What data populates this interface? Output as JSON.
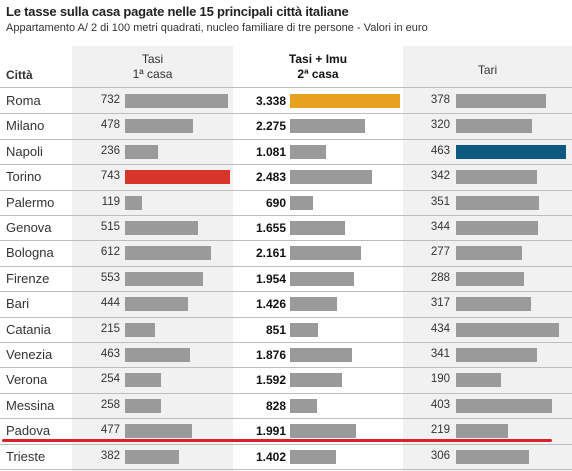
{
  "title": "Le tasse sulla casa pagate nelle 15 principali città italiane",
  "subtitle": "Appartamento A/ 2 di 100 metri quadrati, nucleo familiare di tre persone - Valori in euro",
  "header": {
    "city": "Città",
    "col1_line1": "Tasi",
    "col1_line2": "1ª casa",
    "col2_line1": "Tasi + Imu",
    "col2_line2": "2ª casa",
    "col3_line1": "Tari"
  },
  "colors": {
    "bar_default": "#9a9a9a",
    "max_tasi": "#d7342a",
    "max_tasi_imu": "#e8a020",
    "max_tari": "#0d5a80",
    "underline": "#d7242a"
  },
  "rows": [
    {
      "city": "Roma",
      "tasi": "732",
      "tasi_imu": "3.338",
      "tari": "378"
    },
    {
      "city": "Milano",
      "tasi": "478",
      "tasi_imu": "2.275",
      "tari": "320"
    },
    {
      "city": "Napoli",
      "tasi": "236",
      "tasi_imu": "1.081",
      "tari": "463"
    },
    {
      "city": "Torino",
      "tasi": "743",
      "tasi_imu": "2.483",
      "tari": "342"
    },
    {
      "city": "Palermo",
      "tasi": "119",
      "tasi_imu": "690",
      "tari": "351"
    },
    {
      "city": "Genova",
      "tasi": "515",
      "tasi_imu": "1.655",
      "tari": "344"
    },
    {
      "city": "Bologna",
      "tasi": "612",
      "tasi_imu": "2.161",
      "tari": "277"
    },
    {
      "city": "Firenze",
      "tasi": "553",
      "tasi_imu": "1.954",
      "tari": "288"
    },
    {
      "city": "Bari",
      "tasi": "444",
      "tasi_imu": "1.426",
      "tari": "317"
    },
    {
      "city": "Catania",
      "tasi": "215",
      "tasi_imu": "851",
      "tari": "434"
    },
    {
      "city": "Venezia",
      "tasi": "463",
      "tasi_imu": "1.876",
      "tari": "341"
    },
    {
      "city": "Verona",
      "tasi": "254",
      "tasi_imu": "1.592",
      "tari": "190"
    },
    {
      "city": "Messina",
      "tasi": "258",
      "tasi_imu": "828",
      "tari": "403"
    },
    {
      "city": "Padova",
      "tasi": "477",
      "tasi_imu": "1.991",
      "tari": "219"
    },
    {
      "city": "Trieste",
      "tasi": "382",
      "tasi_imu": "1.402",
      "tari": "306"
    }
  ],
  "chart_data": {
    "type": "bar",
    "title": "Le tasse sulla casa pagate nelle 15 principali città italiane",
    "subtitle": "Appartamento A/ 2 di 100 metri quadrati, nucleo familiare di tre persone - Valori in euro",
    "categories": [
      "Roma",
      "Milano",
      "Napoli",
      "Torino",
      "Palermo",
      "Genova",
      "Bologna",
      "Firenze",
      "Bari",
      "Catania",
      "Venezia",
      "Verona",
      "Messina",
      "Padova",
      "Trieste"
    ],
    "series": [
      {
        "name": "Tasi 1ª casa",
        "values": [
          732,
          478,
          236,
          743,
          119,
          515,
          612,
          553,
          444,
          215,
          463,
          254,
          258,
          477,
          382
        ]
      },
      {
        "name": "Tasi + Imu 2ª casa",
        "values": [
          3338,
          2275,
          1081,
          2483,
          690,
          1655,
          2161,
          1954,
          1426,
          851,
          1876,
          1592,
          828,
          1991,
          1402
        ]
      },
      {
        "name": "Tari",
        "values": [
          378,
          320,
          463,
          342,
          351,
          344,
          277,
          288,
          317,
          434,
          341,
          190,
          403,
          219,
          306
        ]
      }
    ],
    "orientation": "horizontal",
    "highlight": {
      "Tasi 1ª casa": "Torino",
      "Tasi + Imu 2ª casa": "Roma",
      "Tari": "Napoli"
    },
    "grid": false,
    "legend": "none"
  }
}
